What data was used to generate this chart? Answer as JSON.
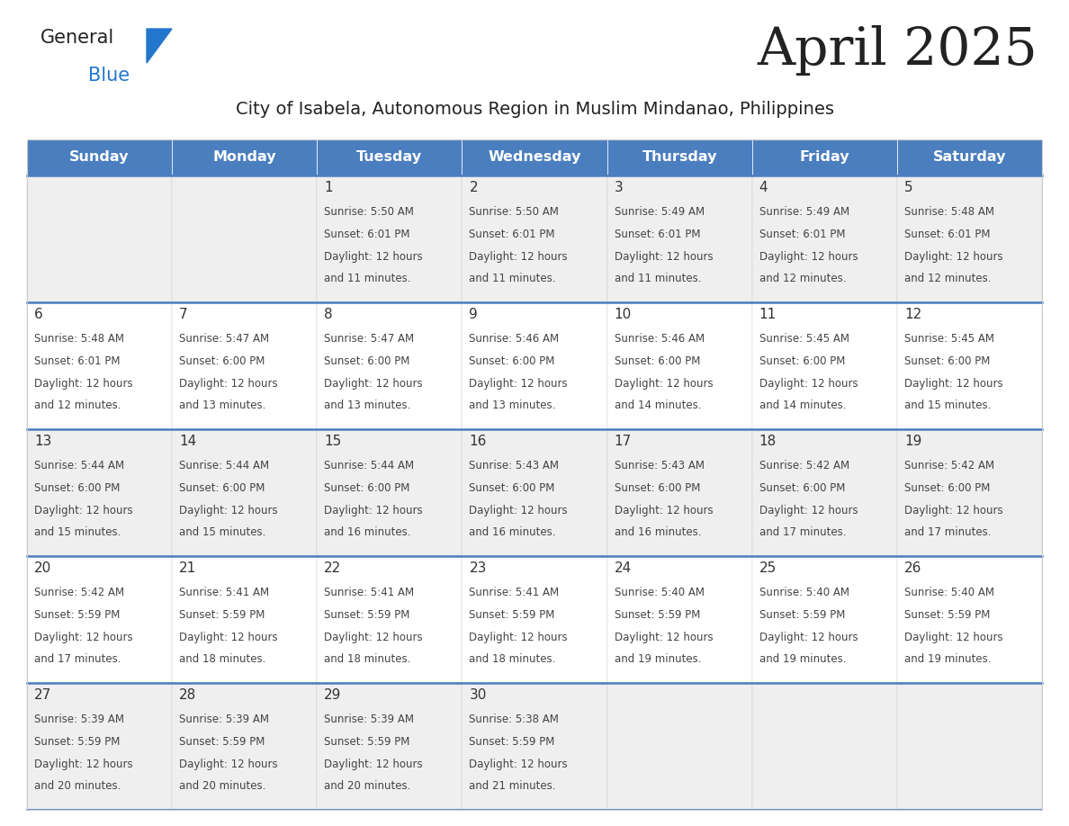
{
  "title": "April 2025",
  "subtitle": "City of Isabela, Autonomous Region in Muslim Mindanao, Philippines",
  "weekdays": [
    "Sunday",
    "Monday",
    "Tuesday",
    "Wednesday",
    "Thursday",
    "Friday",
    "Saturday"
  ],
  "header_bg": "#4a7ebf",
  "header_text": "#FFFFFF",
  "row_bg_odd": "#efefef",
  "row_bg_even": "#FFFFFF",
  "title_color": "#222222",
  "subtitle_color": "#222222",
  "day_number_color": "#333333",
  "cell_text_color": "#444444",
  "separator_color": "#4a7ebf",
  "grid_line_color": "#cccccc",
  "days": [
    {
      "day": 1,
      "col": 2,
      "row": 0,
      "sunrise": "5:50 AM",
      "sunset": "6:01 PM",
      "daylight_h": "12 hours",
      "daylight_m": "and 11 minutes."
    },
    {
      "day": 2,
      "col": 3,
      "row": 0,
      "sunrise": "5:50 AM",
      "sunset": "6:01 PM",
      "daylight_h": "12 hours",
      "daylight_m": "and 11 minutes."
    },
    {
      "day": 3,
      "col": 4,
      "row": 0,
      "sunrise": "5:49 AM",
      "sunset": "6:01 PM",
      "daylight_h": "12 hours",
      "daylight_m": "and 11 minutes."
    },
    {
      "day": 4,
      "col": 5,
      "row": 0,
      "sunrise": "5:49 AM",
      "sunset": "6:01 PM",
      "daylight_h": "12 hours",
      "daylight_m": "and 12 minutes."
    },
    {
      "day": 5,
      "col": 6,
      "row": 0,
      "sunrise": "5:48 AM",
      "sunset": "6:01 PM",
      "daylight_h": "12 hours",
      "daylight_m": "and 12 minutes."
    },
    {
      "day": 6,
      "col": 0,
      "row": 1,
      "sunrise": "5:48 AM",
      "sunset": "6:01 PM",
      "daylight_h": "12 hours",
      "daylight_m": "and 12 minutes."
    },
    {
      "day": 7,
      "col": 1,
      "row": 1,
      "sunrise": "5:47 AM",
      "sunset": "6:00 PM",
      "daylight_h": "12 hours",
      "daylight_m": "and 13 minutes."
    },
    {
      "day": 8,
      "col": 2,
      "row": 1,
      "sunrise": "5:47 AM",
      "sunset": "6:00 PM",
      "daylight_h": "12 hours",
      "daylight_m": "and 13 minutes."
    },
    {
      "day": 9,
      "col": 3,
      "row": 1,
      "sunrise": "5:46 AM",
      "sunset": "6:00 PM",
      "daylight_h": "12 hours",
      "daylight_m": "and 13 minutes."
    },
    {
      "day": 10,
      "col": 4,
      "row": 1,
      "sunrise": "5:46 AM",
      "sunset": "6:00 PM",
      "daylight_h": "12 hours",
      "daylight_m": "and 14 minutes."
    },
    {
      "day": 11,
      "col": 5,
      "row": 1,
      "sunrise": "5:45 AM",
      "sunset": "6:00 PM",
      "daylight_h": "12 hours",
      "daylight_m": "and 14 minutes."
    },
    {
      "day": 12,
      "col": 6,
      "row": 1,
      "sunrise": "5:45 AM",
      "sunset": "6:00 PM",
      "daylight_h": "12 hours",
      "daylight_m": "and 15 minutes."
    },
    {
      "day": 13,
      "col": 0,
      "row": 2,
      "sunrise": "5:44 AM",
      "sunset": "6:00 PM",
      "daylight_h": "12 hours",
      "daylight_m": "and 15 minutes."
    },
    {
      "day": 14,
      "col": 1,
      "row": 2,
      "sunrise": "5:44 AM",
      "sunset": "6:00 PM",
      "daylight_h": "12 hours",
      "daylight_m": "and 15 minutes."
    },
    {
      "day": 15,
      "col": 2,
      "row": 2,
      "sunrise": "5:44 AM",
      "sunset": "6:00 PM",
      "daylight_h": "12 hours",
      "daylight_m": "and 16 minutes."
    },
    {
      "day": 16,
      "col": 3,
      "row": 2,
      "sunrise": "5:43 AM",
      "sunset": "6:00 PM",
      "daylight_h": "12 hours",
      "daylight_m": "and 16 minutes."
    },
    {
      "day": 17,
      "col": 4,
      "row": 2,
      "sunrise": "5:43 AM",
      "sunset": "6:00 PM",
      "daylight_h": "12 hours",
      "daylight_m": "and 16 minutes."
    },
    {
      "day": 18,
      "col": 5,
      "row": 2,
      "sunrise": "5:42 AM",
      "sunset": "6:00 PM",
      "daylight_h": "12 hours",
      "daylight_m": "and 17 minutes."
    },
    {
      "day": 19,
      "col": 6,
      "row": 2,
      "sunrise": "5:42 AM",
      "sunset": "6:00 PM",
      "daylight_h": "12 hours",
      "daylight_m": "and 17 minutes."
    },
    {
      "day": 20,
      "col": 0,
      "row": 3,
      "sunrise": "5:42 AM",
      "sunset": "5:59 PM",
      "daylight_h": "12 hours",
      "daylight_m": "and 17 minutes."
    },
    {
      "day": 21,
      "col": 1,
      "row": 3,
      "sunrise": "5:41 AM",
      "sunset": "5:59 PM",
      "daylight_h": "12 hours",
      "daylight_m": "and 18 minutes."
    },
    {
      "day": 22,
      "col": 2,
      "row": 3,
      "sunrise": "5:41 AM",
      "sunset": "5:59 PM",
      "daylight_h": "12 hours",
      "daylight_m": "and 18 minutes."
    },
    {
      "day": 23,
      "col": 3,
      "row": 3,
      "sunrise": "5:41 AM",
      "sunset": "5:59 PM",
      "daylight_h": "12 hours",
      "daylight_m": "and 18 minutes."
    },
    {
      "day": 24,
      "col": 4,
      "row": 3,
      "sunrise": "5:40 AM",
      "sunset": "5:59 PM",
      "daylight_h": "12 hours",
      "daylight_m": "and 19 minutes."
    },
    {
      "day": 25,
      "col": 5,
      "row": 3,
      "sunrise": "5:40 AM",
      "sunset": "5:59 PM",
      "daylight_h": "12 hours",
      "daylight_m": "and 19 minutes."
    },
    {
      "day": 26,
      "col": 6,
      "row": 3,
      "sunrise": "5:40 AM",
      "sunset": "5:59 PM",
      "daylight_h": "12 hours",
      "daylight_m": "and 19 minutes."
    },
    {
      "day": 27,
      "col": 0,
      "row": 4,
      "sunrise": "5:39 AM",
      "sunset": "5:59 PM",
      "daylight_h": "12 hours",
      "daylight_m": "and 20 minutes."
    },
    {
      "day": 28,
      "col": 1,
      "row": 4,
      "sunrise": "5:39 AM",
      "sunset": "5:59 PM",
      "daylight_h": "12 hours",
      "daylight_m": "and 20 minutes."
    },
    {
      "day": 29,
      "col": 2,
      "row": 4,
      "sunrise": "5:39 AM",
      "sunset": "5:59 PM",
      "daylight_h": "12 hours",
      "daylight_m": "and 20 minutes."
    },
    {
      "day": 30,
      "col": 3,
      "row": 4,
      "sunrise": "5:38 AM",
      "sunset": "5:59 PM",
      "daylight_h": "12 hours",
      "daylight_m": "and 21 minutes."
    }
  ],
  "logo_text1": "General",
  "logo_text2": "Blue",
  "logo_color1": "#222222",
  "logo_color2": "#2277cc",
  "logo_triangle_color": "#2277cc",
  "title_fontsize": 42,
  "subtitle_fontsize": 14,
  "header_fontsize": 11.5,
  "day_num_fontsize": 11,
  "cell_fontsize": 8.5,
  "fig_width": 11.88,
  "fig_height": 9.18,
  "dpi": 100
}
